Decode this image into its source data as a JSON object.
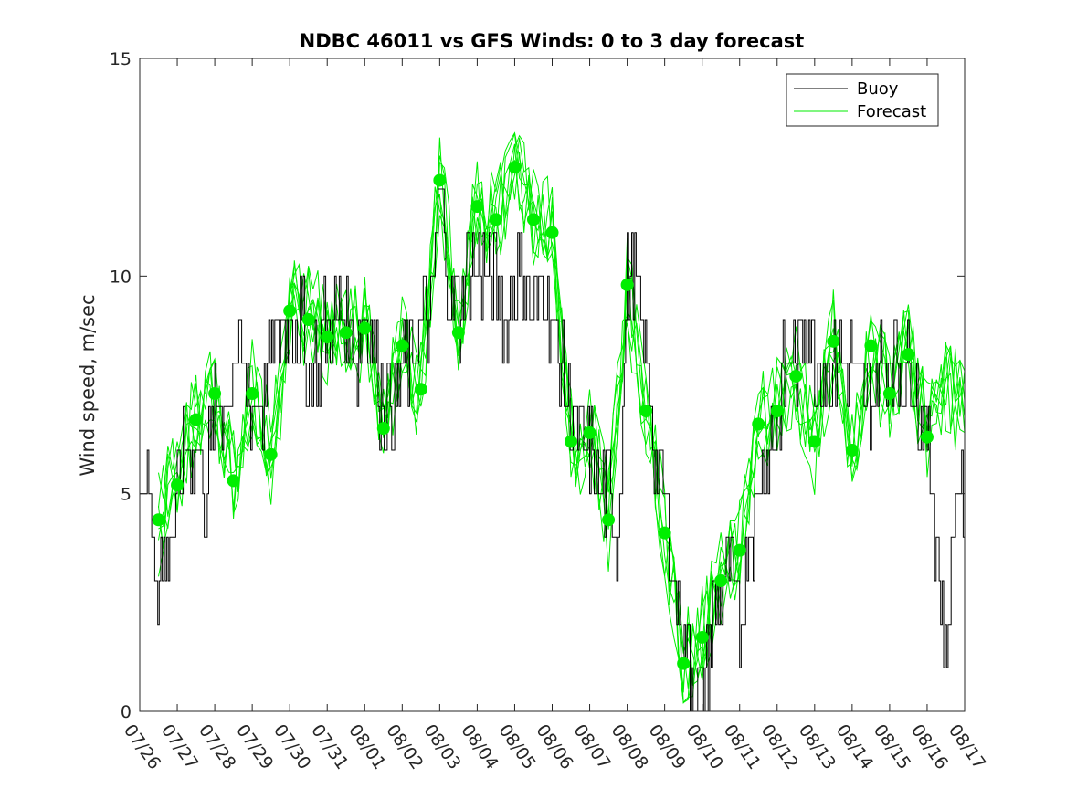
{
  "chart_data": {
    "type": "line",
    "title": "NDBC 46011 vs GFS Winds: 0 to 3 day forecast",
    "xlabel": "",
    "ylabel": "Wind speed, m/sec",
    "xlim": [
      "07/26",
      "08/17"
    ],
    "ylim": [
      0,
      15
    ],
    "x_ticks": [
      "07/26",
      "07/27",
      "07/28",
      "07/29",
      "07/30",
      "07/31",
      "08/01",
      "08/02",
      "08/03",
      "08/04",
      "08/05",
      "08/06",
      "08/07",
      "08/08",
      "08/09",
      "08/10",
      "08/11",
      "08/12",
      "08/13",
      "08/14",
      "08/15",
      "08/16",
      "08/17"
    ],
    "y_ticks": [
      "0",
      "5",
      "10",
      "15"
    ],
    "legend": {
      "position": "top-right",
      "entries": [
        "Buoy",
        "Forecast"
      ]
    },
    "colors": {
      "buoy": "#000000",
      "forecast": "#00ee00",
      "markers": "#00ee00"
    },
    "series": [
      {
        "name": "Buoy",
        "x": [
          0.0,
          0.25,
          0.5,
          0.75,
          1.0,
          1.25,
          1.5,
          1.75,
          2.0,
          2.25,
          2.5,
          2.75,
          3.0,
          3.25,
          3.5,
          3.75,
          4.0,
          4.25,
          4.5,
          4.75,
          5.0,
          5.25,
          5.5,
          5.75,
          6.0,
          6.25,
          6.5,
          6.75,
          7.0,
          7.25,
          7.5,
          7.75,
          8.0,
          8.25,
          8.5,
          8.75,
          9.0,
          9.25,
          9.5,
          9.75,
          10.0,
          10.25,
          10.5,
          10.75,
          11.0,
          11.25,
          11.5,
          11.75,
          12.0,
          12.25,
          12.5,
          12.75,
          13.0,
          13.25,
          13.5,
          13.75,
          14.0,
          14.25,
          14.5,
          14.75,
          15.0,
          15.25,
          15.5,
          15.75,
          16.0,
          16.25,
          16.5,
          16.75,
          17.0,
          17.25,
          17.5,
          17.75,
          18.0,
          18.25,
          18.5,
          18.75,
          19.0,
          19.25,
          19.5,
          19.75,
          20.0,
          20.25,
          20.5,
          20.75,
          21.0,
          21.25,
          21.5,
          21.75,
          22.0
        ],
        "y": [
          5,
          5,
          3,
          4,
          5,
          6,
          6,
          5,
          7,
          7,
          8,
          8,
          7,
          7,
          8,
          9,
          9,
          9,
          8,
          8,
          9,
          9,
          9,
          8,
          9,
          8,
          7,
          7,
          8,
          8,
          9,
          9,
          12,
          10,
          9,
          10,
          10,
          10,
          10,
          9,
          10,
          10,
          9,
          10,
          9,
          8,
          7,
          6,
          6,
          5,
          5,
          4,
          10,
          10,
          8,
          6,
          5,
          3,
          2,
          1,
          0,
          2,
          3,
          3,
          2,
          4,
          5,
          6,
          7,
          8,
          8,
          9,
          8,
          8,
          8,
          8,
          8,
          7,
          7,
          8,
          8,
          8,
          8,
          7,
          6,
          4,
          1,
          5,
          5
        ]
      },
      {
        "name": "Forecast",
        "x": [
          0.5,
          1.0,
          1.5,
          2.0,
          2.5,
          3.0,
          3.5,
          4.0,
          4.5,
          5.0,
          5.5,
          6.0,
          6.5,
          7.0,
          7.5,
          8.0,
          8.5,
          9.0,
          9.5,
          10.0,
          10.5,
          11.0,
          11.5,
          12.0,
          12.5,
          13.0,
          13.5,
          14.0,
          14.5,
          15.0,
          15.5,
          16.0,
          16.5,
          17.0,
          17.5,
          18.0,
          18.5,
          19.0,
          19.5,
          20.0,
          20.5,
          21.0,
          21.5,
          22.0
        ],
        "y": [
          4.4,
          5.3,
          6.7,
          7.3,
          5.4,
          7.3,
          5.9,
          9.2,
          9.1,
          8.7,
          8.8,
          8.9,
          6.5,
          8.4,
          7.4,
          12.2,
          8.7,
          11.6,
          11.2,
          12.5,
          11.3,
          11.0,
          6.2,
          6.4,
          4.4,
          9.8,
          6.9,
          4.1,
          1.1,
          1.7,
          3.0,
          3.7,
          6.6,
          6.9,
          7.7,
          6.2,
          8.5,
          6.0,
          8.4,
          7.3,
          8.2,
          6.3,
          7.4,
          7.2
        ]
      }
    ],
    "forecast_markers": {
      "x": [
        0.5,
        1.0,
        1.5,
        2.0,
        2.5,
        3.0,
        3.5,
        4.0,
        4.5,
        5.0,
        5.5,
        6.0,
        6.5,
        7.0,
        7.5,
        8.0,
        8.5,
        9.0,
        9.5,
        10.0,
        10.5,
        11.0,
        11.5,
        12.0,
        12.5,
        13.0,
        13.5,
        14.0,
        14.5,
        15.0,
        15.5,
        16.0,
        16.5,
        17.0,
        17.5,
        18.0,
        18.5,
        19.0,
        19.5,
        20.0,
        20.5,
        21.0
      ],
      "y": [
        4.4,
        5.2,
        6.7,
        7.3,
        5.3,
        7.3,
        5.9,
        9.2,
        9.0,
        8.6,
        8.7,
        8.8,
        6.5,
        8.4,
        7.4,
        12.2,
        8.7,
        11.6,
        11.3,
        12.5,
        11.3,
        11.0,
        6.2,
        6.4,
        4.4,
        9.8,
        6.9,
        4.1,
        1.1,
        1.7,
        3.0,
        3.7,
        6.6,
        6.9,
        7.7,
        6.2,
        8.5,
        6.0,
        8.4,
        7.3,
        8.2,
        6.3
      ]
    }
  }
}
